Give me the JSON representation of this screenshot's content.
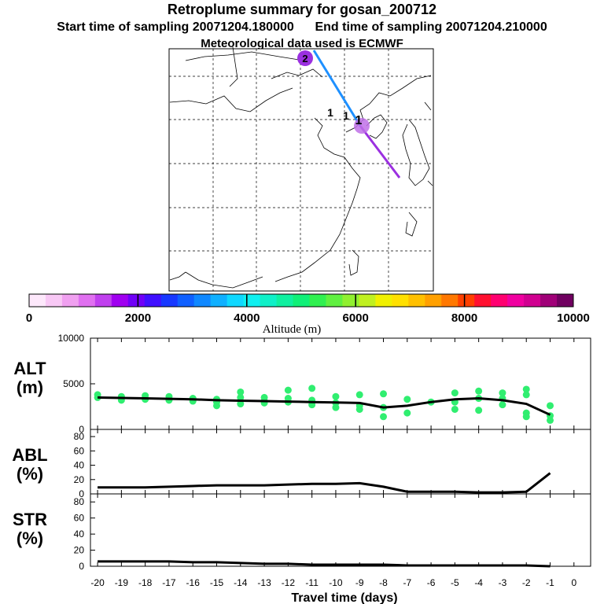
{
  "title": "Retroplume summary for gosan_200712",
  "sampling": {
    "start": "Start time of sampling 20071204.180000",
    "end": "End time of sampling 20071204.210000"
  },
  "met_note": "Meteorological data used is ECMWF",
  "map": {
    "markers": [
      {
        "label": "2",
        "kind": "circle"
      },
      {
        "label": "1",
        "kind": "text"
      },
      {
        "label": "1",
        "kind": "text"
      },
      {
        "label": "1",
        "kind": "text"
      }
    ],
    "colors": {
      "segment_a": "#1e90ff",
      "segment_b": "#9b30e0",
      "marker2": "#9b30e0",
      "marker1": "#c070e8"
    }
  },
  "colorbar": {
    "label": "Altitude (m)",
    "ticks": [
      "0",
      "2000",
      "4000",
      "6000",
      "8000",
      "10000"
    ],
    "colors": [
      "#fde8fb",
      "#f8c8f5",
      "#f0a0f0",
      "#e070f0",
      "#c040ee",
      "#a000f0",
      "#7000f8",
      "#4010ff",
      "#1838ff",
      "#1060ff",
      "#1088ff",
      "#10b0ff",
      "#10d8ff",
      "#10f0f0",
      "#10f0c8",
      "#10f0a0",
      "#10f078",
      "#30f050",
      "#60f040",
      "#90f030",
      "#c0f020",
      "#f0f000",
      "#ffe000",
      "#ffc000",
      "#ffa000",
      "#ff7800",
      "#ff4000",
      "#ff1030",
      "#ff0070",
      "#f000a0",
      "#d00090",
      "#a00078",
      "#700060"
    ]
  },
  "chart_data": [
    {
      "type": "line",
      "id": "alt",
      "ylabel": "ALT (m)",
      "label_line1": "ALT",
      "label_line2": "(m)",
      "ylim": [
        0,
        10000
      ],
      "yticks": [
        "0",
        "5000",
        "10000"
      ],
      "x": [
        -20,
        -19,
        -18,
        -17,
        -16,
        -15,
        -14,
        -13,
        -12,
        -11,
        -10,
        -9,
        -8,
        -7,
        -6,
        -5,
        -4,
        -3,
        -2,
        -1
      ],
      "values": [
        3500,
        3450,
        3400,
        3350,
        3300,
        3200,
        3150,
        3100,
        3050,
        3000,
        2950,
        2900,
        2400,
        2600,
        3000,
        3300,
        3400,
        3200,
        2800,
        1600
      ],
      "scatter": [
        [
          -20,
          3500
        ],
        [
          -20,
          3800
        ],
        [
          -19,
          3600
        ],
        [
          -19,
          3200
        ],
        [
          -18,
          3700
        ],
        [
          -18,
          3300
        ],
        [
          -17,
          3600
        ],
        [
          -17,
          3200
        ],
        [
          -16,
          3400
        ],
        [
          -16,
          3100
        ],
        [
          -15,
          3300
        ],
        [
          -15,
          2600
        ],
        [
          -15,
          3000
        ],
        [
          -14,
          3500
        ],
        [
          -14,
          4100
        ],
        [
          -14,
          2800
        ],
        [
          -13,
          3500
        ],
        [
          -13,
          3100
        ],
        [
          -13,
          2900
        ],
        [
          -12,
          3400
        ],
        [
          -12,
          4300
        ],
        [
          -12,
          3000
        ],
        [
          -11,
          3200
        ],
        [
          -11,
          4500
        ],
        [
          -11,
          2700
        ],
        [
          -10,
          3600
        ],
        [
          -10,
          2900
        ],
        [
          -10,
          2400
        ],
        [
          -9,
          3800
        ],
        [
          -9,
          2600
        ],
        [
          -9,
          2200
        ],
        [
          -8,
          3900
        ],
        [
          -8,
          2400
        ],
        [
          -8,
          1400
        ],
        [
          -7,
          3300
        ],
        [
          -7,
          1800
        ],
        [
          -6,
          3000
        ],
        [
          -5,
          4000
        ],
        [
          -5,
          3000
        ],
        [
          -5,
          2200
        ],
        [
          -4,
          4200
        ],
        [
          -4,
          3400
        ],
        [
          -4,
          2100
        ],
        [
          -3,
          4000
        ],
        [
          -3,
          3400
        ],
        [
          -3,
          2700
        ],
        [
          -2,
          4400
        ],
        [
          -2,
          3800
        ],
        [
          -2,
          1800
        ],
        [
          -2,
          1400
        ],
        [
          -1,
          2600
        ],
        [
          -1,
          1500
        ],
        [
          -1,
          1000
        ]
      ],
      "scatter_color": "#30ee70"
    },
    {
      "type": "line",
      "id": "abl",
      "ylabel": "ABL (%)",
      "label_line1": "ABL",
      "label_line2": "(%)",
      "ylim": [
        0,
        90
      ],
      "yticks": [
        "0",
        "20",
        "40",
        "60",
        "80"
      ],
      "x": [
        -20,
        -19,
        -18,
        -17,
        -16,
        -15,
        -14,
        -13,
        -12,
        -11,
        -10,
        -9,
        -8,
        -7,
        -6,
        -5,
        -4,
        -3,
        -2,
        -1
      ],
      "values": [
        9,
        9,
        9,
        10,
        11,
        12,
        12,
        12,
        13,
        14,
        14,
        15,
        10,
        3,
        3,
        3,
        2,
        2,
        3,
        29
      ]
    },
    {
      "type": "line",
      "id": "str",
      "ylabel": "STR (%)",
      "label_line1": "STR",
      "label_line2": "(%)",
      "ylim": [
        0,
        90
      ],
      "yticks": [
        "0",
        "20",
        "40",
        "60",
        "80"
      ],
      "x": [
        -20,
        -19,
        -18,
        -17,
        -16,
        -15,
        -14,
        -13,
        -12,
        -11,
        -10,
        -9,
        -8,
        -7,
        -6,
        -5,
        -4,
        -3,
        -2,
        -1
      ],
      "values": [
        6,
        6,
        6,
        6,
        5,
        5,
        4,
        3,
        3,
        2,
        2,
        2,
        2,
        1,
        1,
        1,
        1,
        1,
        1,
        0
      ]
    }
  ],
  "xaxis": {
    "xlabel": "Travel time (days)",
    "ticks": [
      "-20",
      "-19",
      "-18",
      "-17",
      "-16",
      "-15",
      "-14",
      "-13",
      "-12",
      "-11",
      "-10",
      "-9",
      "-8",
      "-7",
      "-6",
      "-5",
      "-4",
      "-3",
      "-2",
      "-1",
      "0"
    ]
  }
}
